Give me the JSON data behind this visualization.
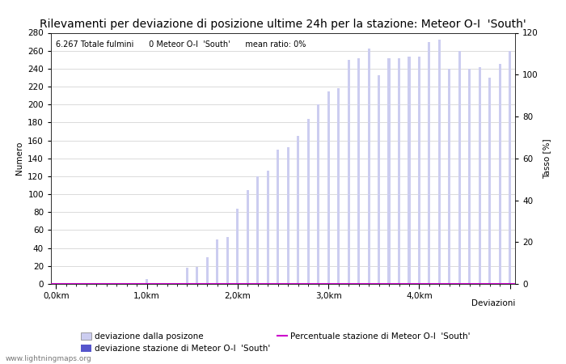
{
  "title": "Rilevamenti per deviazione di posizione ultime 24h per la stazione: Meteor O-I  'South'",
  "subtitle": "6.267 Totale fulmini      0 Meteor O-I  'South'      mean ratio: 0%",
  "xlabel": "Deviazioni",
  "ylabel_left": "Numero",
  "ylabel_right": "Tasso [%]",
  "xlim_left": -0.5,
  "xlim_right": 45.5,
  "ylim_left": [
    0,
    280
  ],
  "ylim_right": [
    0,
    120
  ],
  "xtick_positions": [
    0,
    9,
    18,
    27,
    36,
    45
  ],
  "xtick_labels": [
    "0,0km",
    "1,0km",
    "2,0km",
    "3,0km",
    "4,0km",
    ""
  ],
  "ytick_left": [
    0,
    20,
    40,
    60,
    80,
    100,
    120,
    140,
    160,
    180,
    200,
    220,
    240,
    260,
    280
  ],
  "ytick_right": [
    0,
    20,
    40,
    60,
    80,
    100,
    120
  ],
  "bar_values": [
    0,
    0,
    0,
    0,
    1,
    0,
    0,
    0,
    0,
    5,
    0,
    0,
    0,
    18,
    19,
    30,
    50,
    52,
    84,
    105,
    120,
    126,
    150,
    152,
    165,
    184,
    200,
    215,
    218,
    250,
    252,
    262,
    233,
    252,
    252,
    253,
    253,
    270,
    272,
    240,
    260,
    240,
    242,
    230,
    245,
    260
  ],
  "bar_color_light": "#cccdf0",
  "bar_color_dark": "#5555cc",
  "line_color": "#cc00cc",
  "grid_color": "#cccccc",
  "background_color": "#ffffff",
  "watermark": "www.lightningmaps.org",
  "legend_label1": "deviazione dalla posizone",
  "legend_label2": "deviazione stazione di Meteor O-I  'South'",
  "legend_label3": "Percentuale stazione di Meteor O-I  'South'",
  "title_fontsize": 10,
  "axis_fontsize": 7.5,
  "legend_fontsize": 7.5,
  "bar_width": 0.25
}
